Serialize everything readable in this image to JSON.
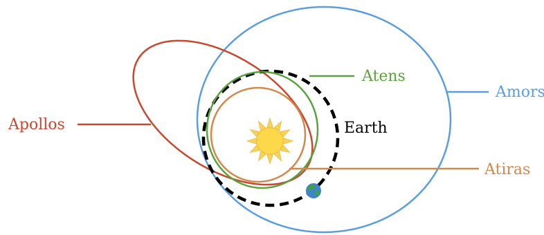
{
  "labels": {
    "apollos": "Apollos",
    "atens": "Atens",
    "amors": "Amors",
    "earth": "Earth",
    "atiras": "Atiras"
  },
  "colors": {
    "apollos": "#c9472d",
    "atens": "#5aa33c",
    "amors": "#5b9ee0",
    "earth": "#000000",
    "atiras": "#d4874a",
    "sun": "#fcd84a",
    "sun_rays": "#f8d25a"
  },
  "icons": {
    "sun": "sun-icon",
    "earth": "earth-globe-icon"
  }
}
